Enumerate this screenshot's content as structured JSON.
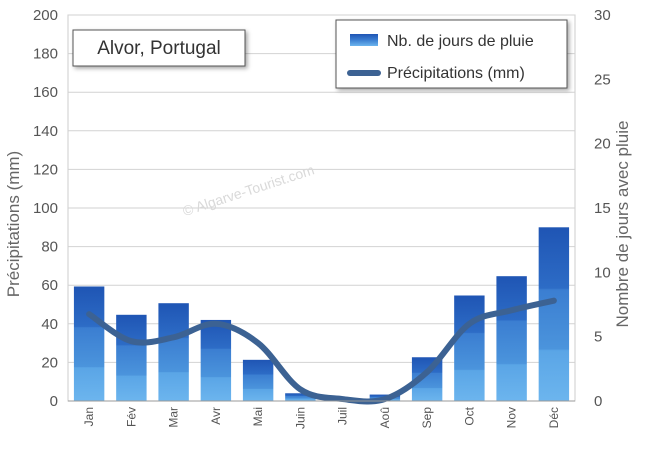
{
  "chart_data": {
    "type": "bar+line",
    "title": "Alvor, Portugal",
    "watermark": "© Algarve-Tourist.com",
    "categories": [
      "Jan",
      "Fév",
      "Mar",
      "Avr",
      "Mai",
      "Juin",
      "Juil",
      "Aoû",
      "Sep",
      "Oct",
      "Nov",
      "Déc"
    ],
    "y_left": {
      "label": "Précipitations (mm)",
      "min": 0,
      "max": 200,
      "ticks": [
        "0",
        "20",
        "40",
        "60",
        "80",
        "100",
        "120",
        "140",
        "160",
        "180",
        "200"
      ]
    },
    "y_right": {
      "label": "Nombre de jours avec pluie",
      "min": 0,
      "max": 30,
      "ticks": [
        "0",
        "5",
        "10",
        "15",
        "20",
        "25",
        "30"
      ]
    },
    "grid": true,
    "legend_position": "top-right",
    "series": [
      {
        "name": "Nb. de jours de pluie",
        "type": "bar",
        "axis": "right",
        "color": "#2a62c0",
        "values": [
          8.9,
          6.7,
          7.6,
          6.3,
          3.2,
          0.6,
          0.2,
          0.5,
          3.4,
          8.2,
          9.7,
          13.5
        ]
      },
      {
        "name": "Précipitations (mm)",
        "type": "line",
        "axis": "left",
        "color": "#3c6293",
        "values": [
          45,
          31,
          33,
          40,
          30,
          6,
          1,
          1,
          15,
          40,
          47,
          52
        ]
      }
    ]
  }
}
